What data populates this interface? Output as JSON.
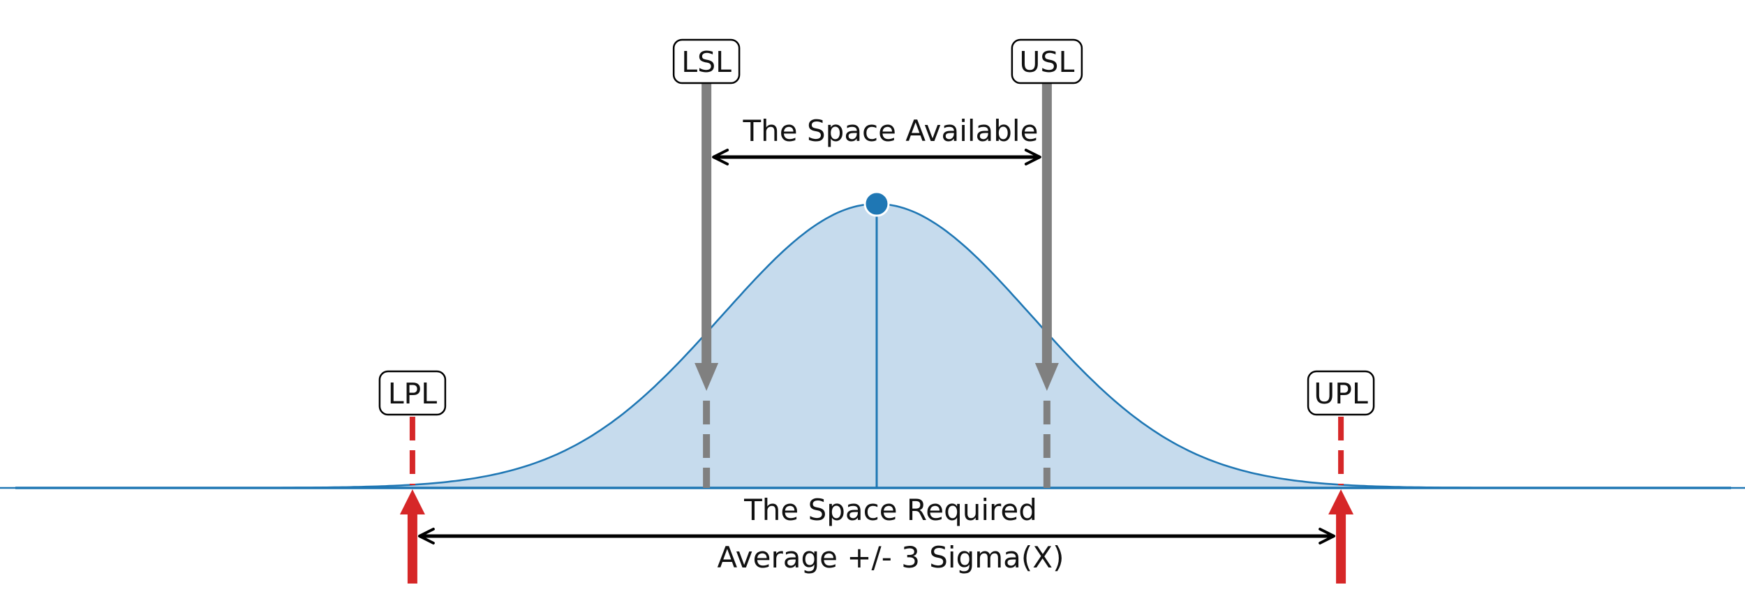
{
  "labels": {
    "lsl": "LSL",
    "usl": "USL",
    "lpl": "LPL",
    "upl": "UPL",
    "space_available": "The Space Available",
    "space_required": "The Space Required",
    "average_sigma": "Average +/- 3 Sigma(X)"
  },
  "colors": {
    "curve_line": "#1f77b4",
    "curve_fill": "#c6dbed",
    "spec_limit": "#808080",
    "process_limit": "#d62728",
    "dimension_arrow": "#000000"
  },
  "chart_data": {
    "type": "area",
    "distribution": "normal",
    "mean": 0,
    "sigma": 1,
    "lower_specification_limit": -1.1,
    "upper_specification_limit": 1.1,
    "lower_process_limit": -3,
    "upper_process_limit": 3,
    "x_range": [
      -6.3,
      6.3
    ]
  }
}
